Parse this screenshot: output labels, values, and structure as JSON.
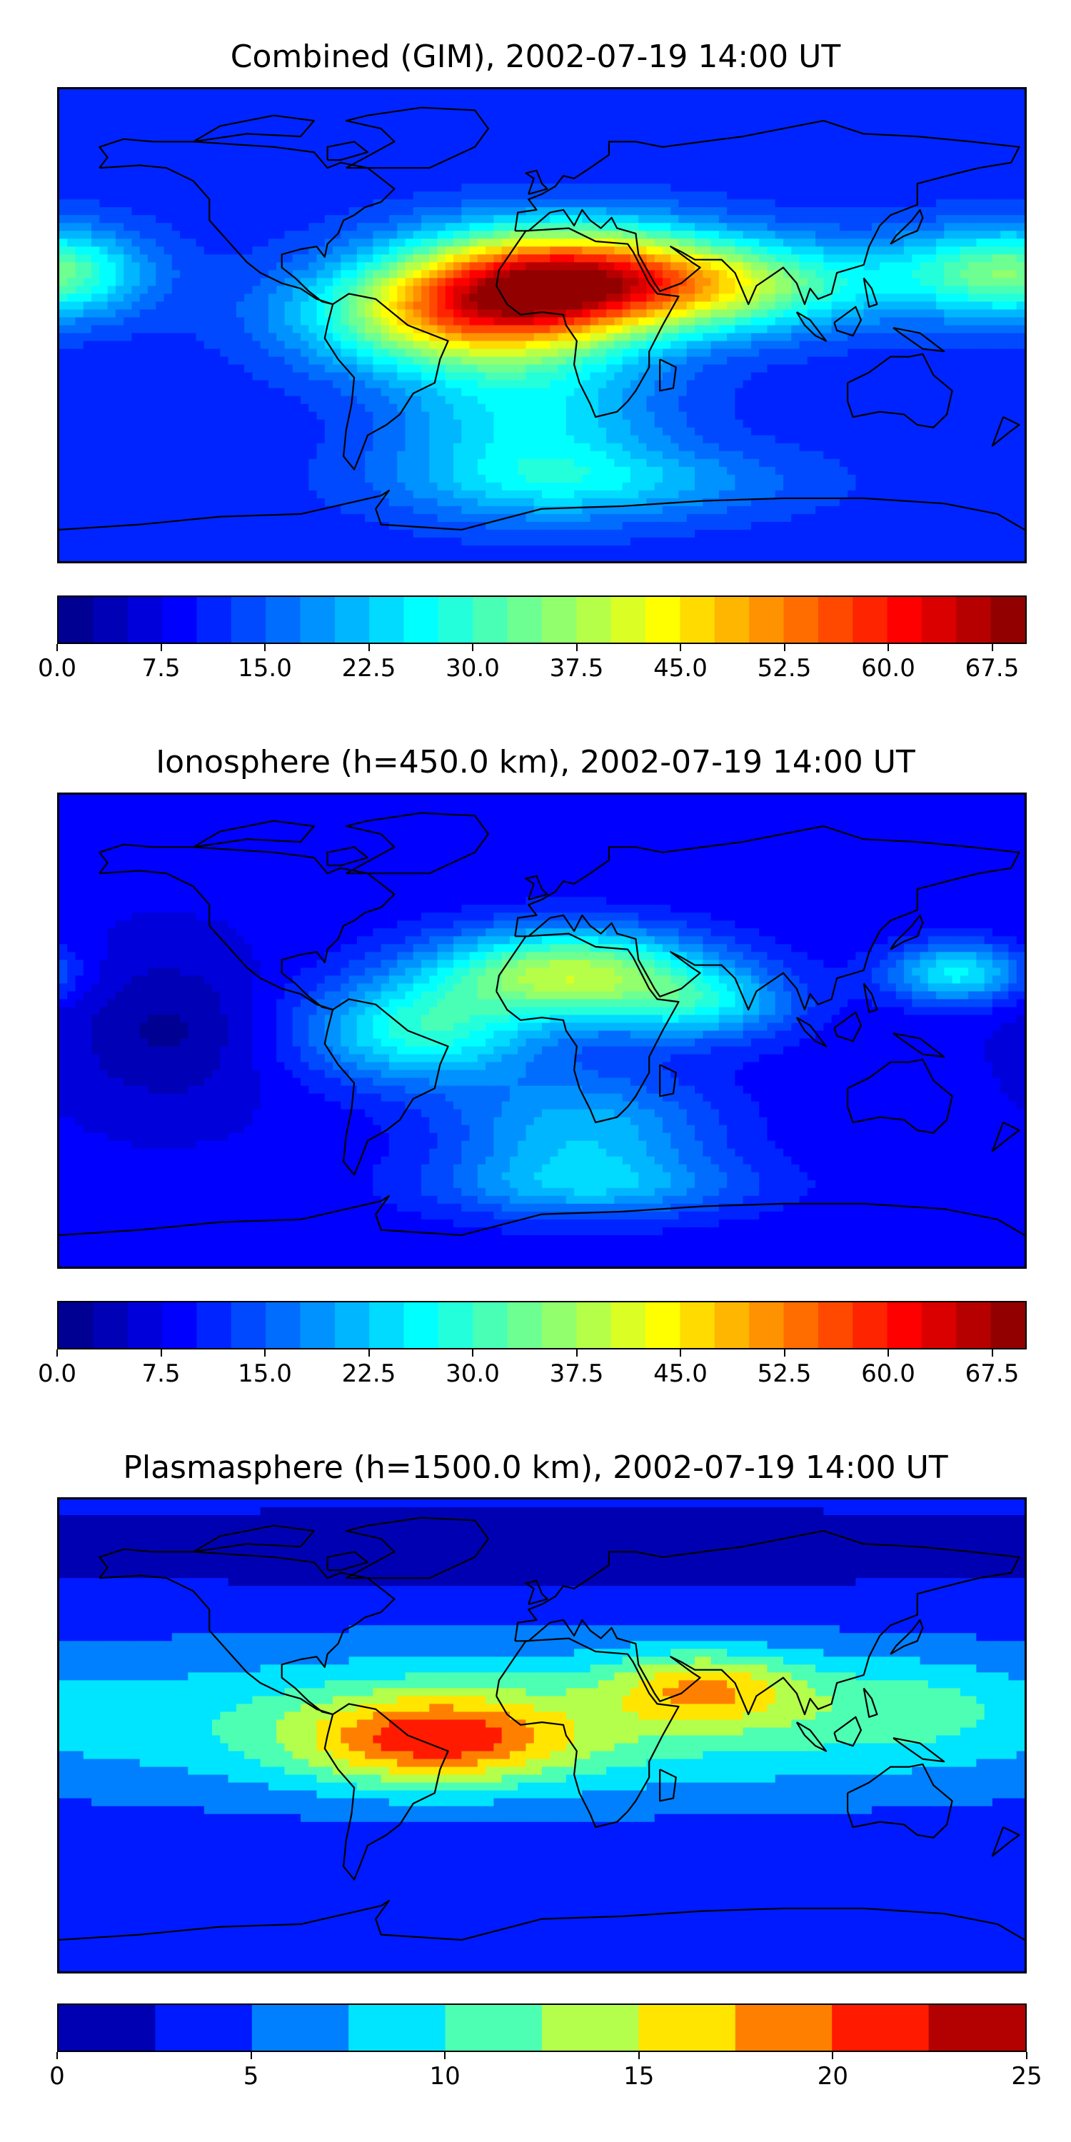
{
  "figure": {
    "colormap": "jet"
  },
  "chart_data": [
    {
      "type": "heatmap",
      "title": "Combined (GIM), 2002-07-19 14:00 UT",
      "colorbar": {
        "min": 0,
        "max": 70,
        "levels": 28,
        "ticks": [
          0.0,
          7.5,
          15.0,
          22.5,
          30.0,
          37.5,
          45.0,
          52.5,
          60.0,
          67.5
        ],
        "tick_labels": [
          "0.0",
          "7.5",
          "15.0",
          "22.5",
          "30.0",
          "37.5",
          "45.0",
          "52.5",
          "60.0",
          "67.5"
        ]
      },
      "extent": {
        "lon": [
          -180,
          180
        ],
        "lat": [
          -90,
          90
        ]
      },
      "background": 11,
      "features": [
        {
          "lon": 8,
          "lat": 18,
          "sx": 40,
          "sy": 14,
          "amp": 48
        },
        {
          "lon": -30,
          "lat": 3,
          "sx": 40,
          "sy": 14,
          "amp": 30
        },
        {
          "lon": 75,
          "lat": 15,
          "sx": 35,
          "sy": 12,
          "amp": 20
        },
        {
          "lon": 160,
          "lat": 20,
          "sx": 30,
          "sy": 12,
          "amp": 14
        },
        {
          "lon": -178,
          "lat": 20,
          "sx": 22,
          "sy": 12,
          "amp": 12
        },
        {
          "lon": -5,
          "lat": -35,
          "sx": 35,
          "sy": 22,
          "amp": 14
        },
        {
          "lon": 20,
          "lat": -60,
          "sx": 50,
          "sy": 10,
          "amp": 10
        }
      ]
    },
    {
      "type": "heatmap",
      "title": "Ionosphere  (h=450.0 km), 2002-07-19 14:00 UT",
      "colorbar": {
        "min": 0,
        "max": 70,
        "levels": 28,
        "ticks": [
          0.0,
          7.5,
          15.0,
          22.5,
          30.0,
          37.5,
          45.0,
          52.5,
          60.0,
          67.5
        ],
        "tick_labels": [
          "0.0",
          "7.5",
          "15.0",
          "22.5",
          "30.0",
          "37.5",
          "45.0",
          "52.5",
          "60.0",
          "67.5"
        ]
      },
      "extent": {
        "lon": [
          -180,
          180
        ],
        "lat": [
          -90,
          90
        ]
      },
      "background": 8,
      "features": [
        {
          "lon": 10,
          "lat": 22,
          "sx": 35,
          "sy": 12,
          "amp": 30
        },
        {
          "lon": -45,
          "lat": 0,
          "sx": 30,
          "sy": 14,
          "amp": 20
        },
        {
          "lon": 60,
          "lat": 10,
          "sx": 25,
          "sy": 10,
          "amp": 14
        },
        {
          "lon": 155,
          "lat": 22,
          "sx": 18,
          "sy": 8,
          "amp": 18
        },
        {
          "lon": 15,
          "lat": -40,
          "sx": 35,
          "sy": 18,
          "amp": 14
        },
        {
          "lon": 20,
          "lat": -60,
          "sx": 45,
          "sy": 8,
          "amp": 8
        },
        {
          "lon": -140,
          "lat": 0,
          "sx": 25,
          "sy": 20,
          "amp": -6
        }
      ]
    },
    {
      "type": "heatmap",
      "title": "Plasmasphere (h=1500.0 km), 2002-07-19 14:00 UT",
      "colorbar": {
        "min": 0,
        "max": 25,
        "levels": 10,
        "ticks": [
          0,
          5,
          10,
          15,
          20,
          25
        ],
        "tick_labels": [
          "0",
          "5",
          "10",
          "15",
          "20",
          "25"
        ]
      },
      "extent": {
        "lon": [
          -180,
          180
        ],
        "lat": [
          -90,
          90
        ]
      },
      "background": 3,
      "features": [
        {
          "lon": 0,
          "lat": 5,
          "sx": 180,
          "sy": 22,
          "amp": 8
        },
        {
          "lon": -40,
          "lat": -2,
          "sx": 35,
          "sy": 12,
          "amp": 12
        },
        {
          "lon": 60,
          "lat": 18,
          "sx": 25,
          "sy": 10,
          "amp": 9
        },
        {
          "lon": 135,
          "lat": 12,
          "sx": 30,
          "sy": 12,
          "amp": 3
        },
        {
          "lon": 0,
          "lat": 70,
          "sx": 180,
          "sy": 10,
          "amp": -2
        }
      ]
    }
  ]
}
